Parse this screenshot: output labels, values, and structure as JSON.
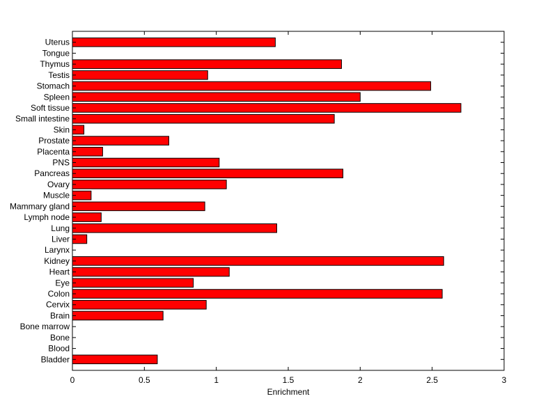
{
  "chart_data": {
    "type": "bar",
    "orientation": "horizontal",
    "categories": [
      "Uterus",
      "Tongue",
      "Thymus",
      "Testis",
      "Stomach",
      "Spleen",
      "Soft tissue",
      "Small intestine",
      "Skin",
      "Prostate",
      "Placenta",
      "PNS",
      "Pancreas",
      "Ovary",
      "Muscle",
      "Mammary gland",
      "Lymph node",
      "Lung",
      "Liver",
      "Larynx",
      "Kidney",
      "Heart",
      "Eye",
      "Colon",
      "Cervix",
      "Brain",
      "Bone marrow",
      "Bone",
      "Blood",
      "Bladder"
    ],
    "values": [
      1.41,
      0,
      1.87,
      0.94,
      2.49,
      2.0,
      2.7,
      1.82,
      0.08,
      0.67,
      0.21,
      1.02,
      1.88,
      1.07,
      0.13,
      0.92,
      0.2,
      1.42,
      0.1,
      0,
      2.58,
      1.09,
      0.84,
      2.57,
      0.93,
      0.63,
      0,
      0,
      0,
      0.59
    ],
    "title": "",
    "xlabel": "Enrichment",
    "ylabel": "",
    "xlim": [
      0,
      3
    ],
    "xticks": [
      0,
      0.5,
      1,
      1.5,
      2,
      2.5,
      3
    ],
    "xtick_labels": [
      "0",
      "0.5",
      "1",
      "1.5",
      "2",
      "2.5",
      "3"
    ],
    "grid": false,
    "bar_color": "#ff0000",
    "edge_color": "#000000"
  }
}
